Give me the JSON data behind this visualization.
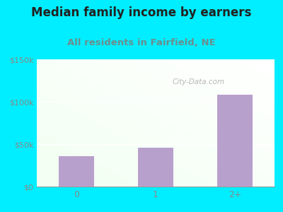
{
  "title": "Median family income by earners",
  "subtitle": "All residents in Fairfield, NE",
  "categories": [
    "0",
    "1",
    "2+"
  ],
  "values": [
    36000,
    46000,
    108000
  ],
  "bar_color": "#b8a0cc",
  "ylim": [
    0,
    150000
  ],
  "yticks": [
    0,
    50000,
    100000,
    150000
  ],
  "ytick_labels": [
    "$0",
    "$50k",
    "$100k",
    "$150k"
  ],
  "title_fontsize": 12,
  "subtitle_fontsize": 9.5,
  "title_color": "#222222",
  "subtitle_color": "#6b8e8e",
  "tick_color": "#888888",
  "outer_bg_color": "#00eeff",
  "plot_bg_top": "#f0fff0",
  "plot_bg_bottom": "#e8f5e8",
  "watermark": "City-Data.com",
  "watermark_color": "#aaaaaa",
  "grid_color": "#dddddd"
}
